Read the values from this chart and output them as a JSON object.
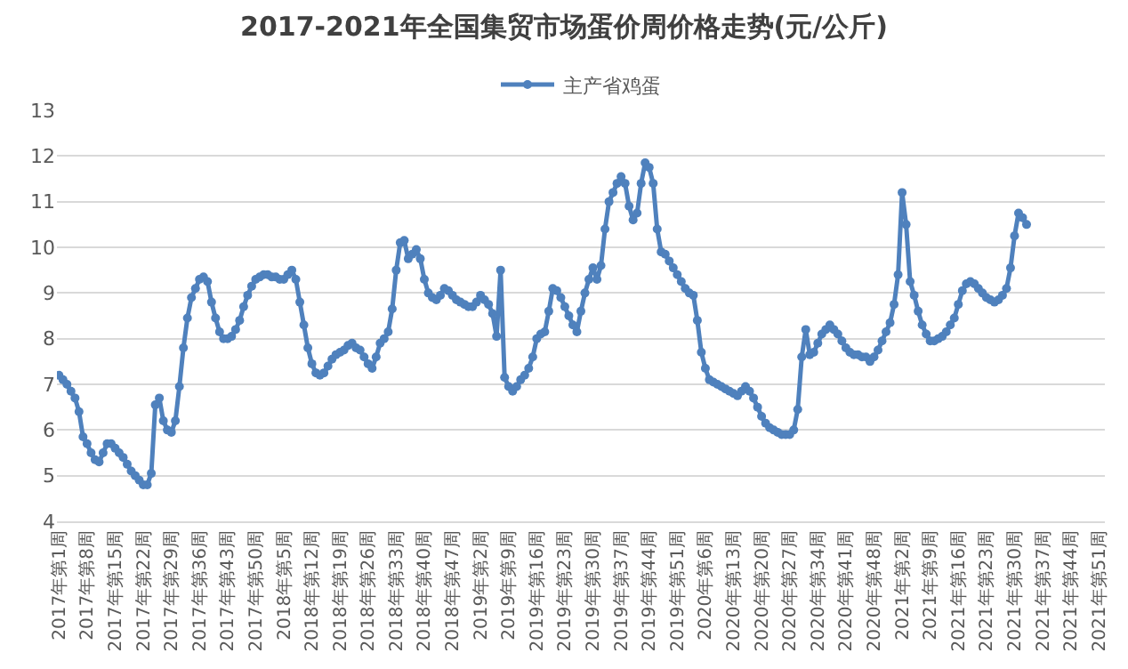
{
  "chart_data": {
    "type": "line",
    "title": "2017-2021年全国集贸市场蛋价周价格走势(元/公斤)",
    "categories": [
      "2017年第1周",
      null,
      null,
      null,
      null,
      null,
      null,
      "2017年第8周",
      null,
      null,
      null,
      null,
      null,
      null,
      "2017年第15周",
      null,
      null,
      null,
      null,
      null,
      null,
      "2017年第22周",
      null,
      null,
      null,
      null,
      null,
      null,
      "2017年第29周",
      null,
      null,
      null,
      null,
      null,
      null,
      "2017年第36周",
      null,
      null,
      null,
      null,
      null,
      null,
      "2017年第43周",
      null,
      null,
      null,
      null,
      null,
      null,
      "2017年第50周",
      null,
      null,
      null,
      null,
      null,
      null,
      "2018年第5周",
      null,
      null,
      null,
      null,
      null,
      null,
      "2018年第12周",
      null,
      null,
      null,
      null,
      null,
      null,
      "2018年第19周",
      null,
      null,
      null,
      null,
      null,
      null,
      "2018年第26周",
      null,
      null,
      null,
      null,
      null,
      null,
      "2018年第33周",
      null,
      null,
      null,
      null,
      null,
      null,
      "2018年第40周",
      null,
      null,
      null,
      null,
      null,
      null,
      "2018年第47周",
      null,
      null,
      null,
      null,
      null,
      null,
      "2019年第2周",
      null,
      null,
      null,
      null,
      null,
      null,
      "2019年第9周",
      null,
      null,
      null,
      null,
      null,
      null,
      "2019年第16周",
      null,
      null,
      null,
      null,
      null,
      null,
      "2019年第23周",
      null,
      null,
      null,
      null,
      null,
      null,
      "2019年第30周",
      null,
      null,
      null,
      null,
      null,
      null,
      "2019年第37周",
      null,
      null,
      null,
      null,
      null,
      null,
      "2019年第44周",
      null,
      null,
      null,
      null,
      null,
      null,
      "2019年第51周",
      null,
      null,
      null,
      null,
      null,
      null,
      "2020年第6周",
      null,
      null,
      null,
      null,
      null,
      null,
      "2020年第13周",
      null,
      null,
      null,
      null,
      null,
      null,
      "2020年第20周",
      null,
      null,
      null,
      null,
      null,
      null,
      "2020年第27周",
      null,
      null,
      null,
      null,
      null,
      null,
      "2020年第34周",
      null,
      null,
      null,
      null,
      null,
      null,
      "2020年第41周",
      null,
      null,
      null,
      null,
      null,
      null,
      "2020年第48周",
      null,
      null,
      null,
      null,
      null,
      null,
      "2021年第2周",
      null,
      null,
      null,
      null,
      null,
      null,
      "2021年第9周",
      null,
      null,
      null,
      null,
      null,
      null,
      "2021年第16周",
      null,
      null,
      null,
      null,
      null,
      null,
      "2021年第23周",
      null,
      null,
      null,
      null,
      null,
      null,
      "2021年第30周",
      null,
      null,
      null,
      null,
      null,
      null,
      "2021年第37周",
      null,
      null,
      null,
      null,
      null,
      null,
      "2021年第44周",
      null,
      null,
      null,
      null,
      null,
      null,
      "2021年第51周",
      null
    ],
    "series": [
      {
        "name": "主产省鸡蛋",
        "color": "#4f81bd",
        "values": [
          7.2,
          7.1,
          7.0,
          6.85,
          6.7,
          6.4,
          5.85,
          5.7,
          5.5,
          5.35,
          5.3,
          5.5,
          5.7,
          5.7,
          5.6,
          5.5,
          5.4,
          5.25,
          5.1,
          5.0,
          4.9,
          4.8,
          4.8,
          5.05,
          6.55,
          6.7,
          6.2,
          6.0,
          5.95,
          6.2,
          6.95,
          7.8,
          8.45,
          8.9,
          9.1,
          9.3,
          9.35,
          9.25,
          8.8,
          8.45,
          8.15,
          8.0,
          8.0,
          8.05,
          8.2,
          8.4,
          8.7,
          8.95,
          9.15,
          9.3,
          9.35,
          9.4,
          9.4,
          9.35,
          9.35,
          9.3,
          9.3,
          9.4,
          9.5,
          9.3,
          8.8,
          8.3,
          7.8,
          7.45,
          7.25,
          7.2,
          7.25,
          7.4,
          7.55,
          7.65,
          7.7,
          7.75,
          7.85,
          7.9,
          7.8,
          7.75,
          7.6,
          7.45,
          7.35,
          7.6,
          7.9,
          8.0,
          8.15,
          8.65,
          9.5,
          10.1,
          10.15,
          9.75,
          9.85,
          9.95,
          9.75,
          9.3,
          9.0,
          8.9,
          8.85,
          8.95,
          9.1,
          9.05,
          8.95,
          8.85,
          8.8,
          8.75,
          8.7,
          8.7,
          8.8,
          8.95,
          8.85,
          8.75,
          8.55,
          8.05,
          9.5,
          7.15,
          6.95,
          6.85,
          6.95,
          7.1,
          7.2,
          7.35,
          7.6,
          8.0,
          8.1,
          8.15,
          8.6,
          9.1,
          9.05,
          8.9,
          8.7,
          8.5,
          8.3,
          8.15,
          8.6,
          9.0,
          9.3,
          9.55,
          9.3,
          9.6,
          10.4,
          11.0,
          11.2,
          11.4,
          11.55,
          11.4,
          10.9,
          10.6,
          10.75,
          11.4,
          11.85,
          11.75,
          11.4,
          10.4,
          9.9,
          9.85,
          9.7,
          9.55,
          9.4,
          9.25,
          9.1,
          9.0,
          8.95,
          8.4,
          7.7,
          7.35,
          7.1,
          7.05,
          7.0,
          6.95,
          6.9,
          6.85,
          6.8,
          6.75,
          6.85,
          6.95,
          6.85,
          6.7,
          6.5,
          6.3,
          6.15,
          6.05,
          6.0,
          5.95,
          5.9,
          5.9,
          5.9,
          6.0,
          6.45,
          7.6,
          8.2,
          7.65,
          7.7,
          7.9,
          8.1,
          8.2,
          8.3,
          8.2,
          8.1,
          7.95,
          7.8,
          7.7,
          7.65,
          7.65,
          7.6,
          7.6,
          7.5,
          7.6,
          7.75,
          7.95,
          8.15,
          8.35,
          8.75,
          9.4,
          11.2,
          10.5,
          9.25,
          8.95,
          8.6,
          8.3,
          8.1,
          7.95,
          7.95,
          8.0,
          8.05,
          8.15,
          8.3,
          8.45,
          8.75,
          9.05,
          9.2,
          9.25,
          9.2,
          9.1,
          9.0,
          8.9,
          8.85,
          8.8,
          8.85,
          8.95,
          9.1,
          9.55,
          10.25,
          10.75,
          10.65,
          10.5,
          null,
          null,
          null,
          null,
          null,
          null,
          null,
          null,
          null,
          null,
          null,
          null,
          null,
          null,
          null,
          null,
          null,
          null,
          null
        ]
      }
    ],
    "ylim": [
      4,
      13
    ],
    "yticks": [
      4,
      5,
      6,
      7,
      8,
      9,
      10,
      11,
      12,
      13
    ],
    "grid": "y",
    "legend": "top",
    "marker": "circle"
  }
}
